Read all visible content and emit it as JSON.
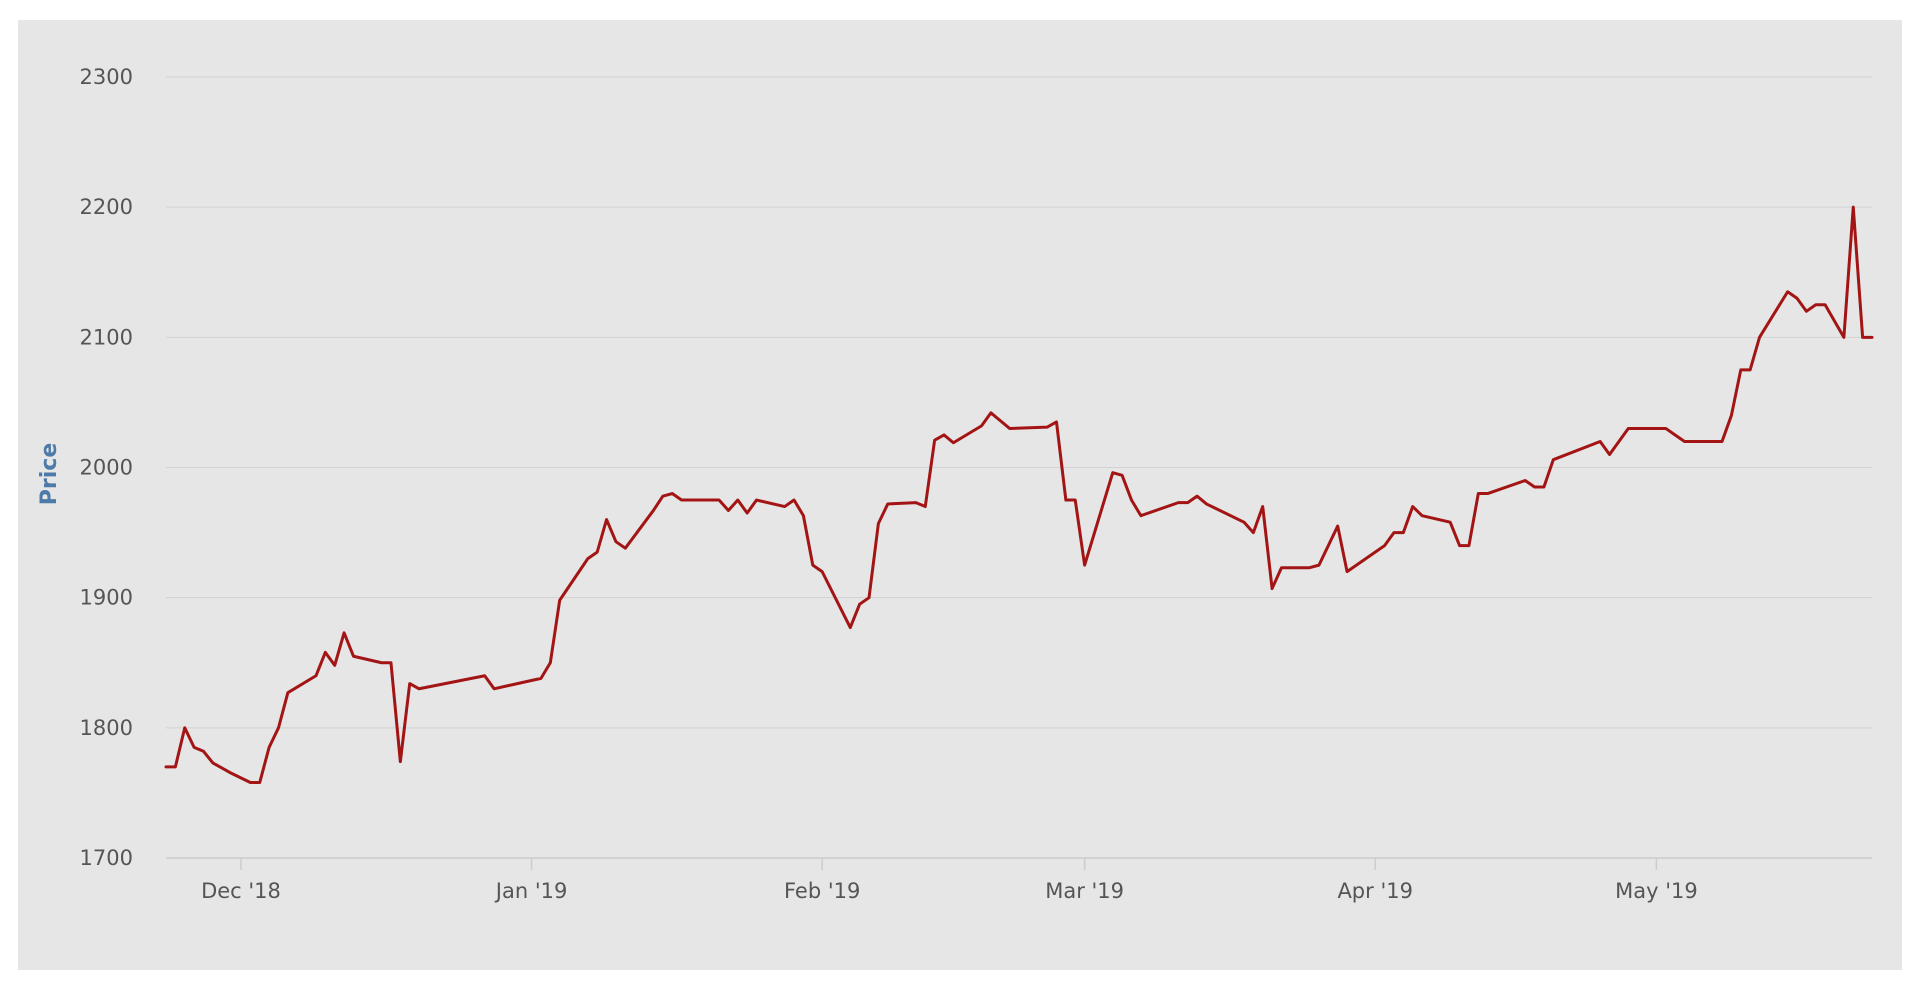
{
  "chart_data": {
    "type": "line",
    "title": "",
    "xlabel": "",
    "ylabel": "Price",
    "ylim": [
      1700,
      2300
    ],
    "xlim": [
      "2018-11-23",
      "2019-05-24"
    ],
    "grid": true,
    "legend": "none",
    "y_ticks": [
      1700,
      1800,
      1900,
      2000,
      2100,
      2200,
      2300
    ],
    "x_ticks": [
      {
        "date": "2018-12-01",
        "label": "Dec '18"
      },
      {
        "date": "2019-01-01",
        "label": "Jan '19"
      },
      {
        "date": "2019-02-01",
        "label": "Feb '19"
      },
      {
        "date": "2019-03-01",
        "label": "Mar '19"
      },
      {
        "date": "2019-04-01",
        "label": "Apr '19"
      },
      {
        "date": "2019-05-01",
        "label": "May '19"
      }
    ],
    "colors": {
      "background": "#e6e6e6",
      "line": "#a31515",
      "grid": "#d2d2d2",
      "axis": "#cccccc"
    },
    "series": [
      {
        "points": [
          [
            "2018-11-23",
            1770
          ],
          [
            "2018-11-24",
            1770
          ],
          [
            "2018-11-25",
            1800
          ],
          [
            "2018-11-26",
            1785
          ],
          [
            "2018-11-27",
            1782
          ],
          [
            "2018-11-28",
            1773
          ],
          [
            "2018-11-30",
            1765
          ],
          [
            "2018-12-02",
            1758
          ],
          [
            "2018-12-03",
            1758
          ],
          [
            "2018-12-04",
            1785
          ],
          [
            "2018-12-05",
            1800
          ],
          [
            "2018-12-06",
            1827
          ],
          [
            "2018-12-09",
            1840
          ],
          [
            "2018-12-10",
            1858
          ],
          [
            "2018-12-11",
            1848
          ],
          [
            "2018-12-12",
            1873
          ],
          [
            "2018-12-13",
            1855
          ],
          [
            "2018-12-16",
            1850
          ],
          [
            "2018-12-17",
            1850
          ],
          [
            "2018-12-18",
            1774
          ],
          [
            "2018-12-19",
            1834
          ],
          [
            "2018-12-20",
            1830
          ],
          [
            "2018-12-27",
            1840
          ],
          [
            "2018-12-28",
            1830
          ],
          [
            "2019-01-02",
            1838
          ],
          [
            "2019-01-03",
            1850
          ],
          [
            "2019-01-04",
            1898
          ],
          [
            "2019-01-07",
            1930
          ],
          [
            "2019-01-08",
            1935
          ],
          [
            "2019-01-09",
            1960
          ],
          [
            "2019-01-10",
            1943
          ],
          [
            "2019-01-11",
            1938
          ],
          [
            "2019-01-14",
            1967
          ],
          [
            "2019-01-15",
            1978
          ],
          [
            "2019-01-16",
            1980
          ],
          [
            "2019-01-17",
            1975
          ],
          [
            "2019-01-21",
            1975
          ],
          [
            "2019-01-22",
            1967
          ],
          [
            "2019-01-23",
            1975
          ],
          [
            "2019-01-24",
            1965
          ],
          [
            "2019-01-25",
            1975
          ],
          [
            "2019-01-28",
            1970
          ],
          [
            "2019-01-29",
            1975
          ],
          [
            "2019-01-30",
            1963
          ],
          [
            "2019-01-31",
            1925
          ],
          [
            "2019-02-01",
            1920
          ],
          [
            "2019-02-04",
            1877
          ],
          [
            "2019-02-05",
            1895
          ],
          [
            "2019-02-06",
            1900
          ],
          [
            "2019-02-07",
            1957
          ],
          [
            "2019-02-08",
            1972
          ],
          [
            "2019-02-11",
            1973
          ],
          [
            "2019-02-12",
            1970
          ],
          [
            "2019-02-13",
            2021
          ],
          [
            "2019-02-14",
            2025
          ],
          [
            "2019-02-15",
            2019
          ],
          [
            "2019-02-18",
            2032
          ],
          [
            "2019-02-19",
            2042
          ],
          [
            "2019-02-20",
            2036
          ],
          [
            "2019-02-21",
            2030
          ],
          [
            "2019-02-25",
            2031
          ],
          [
            "2019-02-26",
            2035
          ],
          [
            "2019-02-27",
            1975
          ],
          [
            "2019-02-28",
            1975
          ],
          [
            "2019-03-01",
            1925
          ],
          [
            "2019-03-04",
            1996
          ],
          [
            "2019-03-05",
            1994
          ],
          [
            "2019-03-06",
            1975
          ],
          [
            "2019-03-07",
            1963
          ],
          [
            "2019-03-11",
            1973
          ],
          [
            "2019-03-12",
            1973
          ],
          [
            "2019-03-13",
            1978
          ],
          [
            "2019-03-14",
            1972
          ],
          [
            "2019-03-18",
            1958
          ],
          [
            "2019-03-19",
            1950
          ],
          [
            "2019-03-20",
            1970
          ],
          [
            "2019-03-21",
            1907
          ],
          [
            "2019-03-22",
            1923
          ],
          [
            "2019-03-25",
            1923
          ],
          [
            "2019-03-26",
            1925
          ],
          [
            "2019-03-28",
            1955
          ],
          [
            "2019-03-29",
            1920
          ],
          [
            "2019-04-02",
            1940
          ],
          [
            "2019-04-03",
            1950
          ],
          [
            "2019-04-04",
            1950
          ],
          [
            "2019-04-05",
            1970
          ],
          [
            "2019-04-06",
            1963
          ],
          [
            "2019-04-09",
            1958
          ],
          [
            "2019-04-10",
            1940
          ],
          [
            "2019-04-11",
            1940
          ],
          [
            "2019-04-12",
            1980
          ],
          [
            "2019-04-13",
            1980
          ],
          [
            "2019-04-17",
            1990
          ],
          [
            "2019-04-18",
            1985
          ],
          [
            "2019-04-19",
            1985
          ],
          [
            "2019-04-20",
            2006
          ],
          [
            "2019-04-25",
            2020
          ],
          [
            "2019-04-26",
            2010
          ],
          [
            "2019-04-28",
            2030
          ],
          [
            "2019-05-01",
            2030
          ],
          [
            "2019-05-02",
            2030
          ],
          [
            "2019-05-03",
            2025
          ],
          [
            "2019-05-04",
            2020
          ],
          [
            "2019-05-08",
            2020
          ],
          [
            "2019-05-09",
            2040
          ],
          [
            "2019-05-10",
            2075
          ],
          [
            "2019-05-11",
            2075
          ],
          [
            "2019-05-12",
            2100
          ],
          [
            "2019-05-15",
            2135
          ],
          [
            "2019-05-16",
            2130
          ],
          [
            "2019-05-17",
            2120
          ],
          [
            "2019-05-18",
            2125
          ],
          [
            "2019-05-19",
            2125
          ],
          [
            "2019-05-21",
            2100
          ],
          [
            "2019-05-22",
            2200
          ],
          [
            "2019-05-23",
            2100
          ],
          [
            "2019-05-24",
            2100
          ]
        ]
      }
    ]
  }
}
